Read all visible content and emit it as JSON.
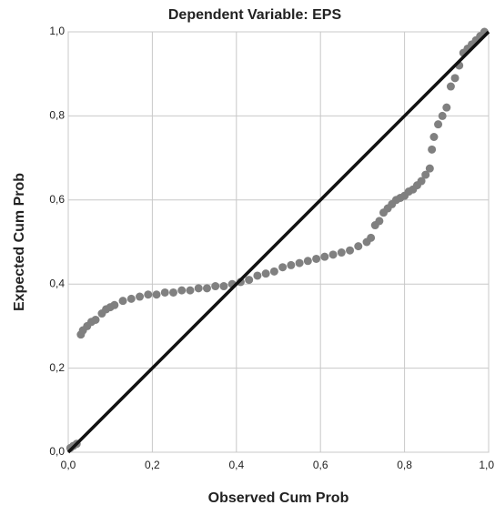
{
  "chart_data": {
    "type": "scatter",
    "title": "Dependent Variable: EPS",
    "x_label": "Observed Cum Prob",
    "y_label": "Expected Cum Prob",
    "xlim": [
      0,
      1
    ],
    "ylim": [
      0,
      1
    ],
    "xticks": [
      {
        "value": 0,
        "label": "0,0"
      },
      {
        "value": 0.2,
        "label": "0,2"
      },
      {
        "value": 0.4,
        "label": "0,4"
      },
      {
        "value": 0.6,
        "label": "0,6"
      },
      {
        "value": 0.8,
        "label": "0,8"
      },
      {
        "value": 1,
        "label": "1,0"
      }
    ],
    "yticks": [
      {
        "value": 0,
        "label": "0,0"
      },
      {
        "value": 0.2,
        "label": "0,2"
      },
      {
        "value": 0.4,
        "label": "0,4"
      },
      {
        "value": 0.6,
        "label": "0,6"
      },
      {
        "value": 0.8,
        "label": "0,8"
      },
      {
        "value": 1,
        "label": "1,0"
      }
    ],
    "grid": true,
    "series": [
      {
        "color": "#808080",
        "x": [
          0.005,
          0.012,
          0.02,
          0.03,
          0.035,
          0.045,
          0.055,
          0.065,
          0.08,
          0.09,
          0.1,
          0.11,
          0.13,
          0.15,
          0.17,
          0.19,
          0.21,
          0.23,
          0.25,
          0.27,
          0.29,
          0.31,
          0.33,
          0.35,
          0.37,
          0.39,
          0.41,
          0.43,
          0.45,
          0.47,
          0.49,
          0.51,
          0.53,
          0.55,
          0.57,
          0.59,
          0.61,
          0.63,
          0.65,
          0.67,
          0.69,
          0.71,
          0.72,
          0.73,
          0.74,
          0.75,
          0.76,
          0.77,
          0.78,
          0.79,
          0.8,
          0.81,
          0.82,
          0.83,
          0.84,
          0.85,
          0.86,
          0.865,
          0.87,
          0.88,
          0.89,
          0.9,
          0.91,
          0.92,
          0.93,
          0.94,
          0.95,
          0.96,
          0.97,
          0.98,
          0.99
        ],
        "values": [
          0.01,
          0.015,
          0.02,
          0.28,
          0.29,
          0.3,
          0.31,
          0.315,
          0.33,
          0.34,
          0.345,
          0.35,
          0.36,
          0.365,
          0.37,
          0.375,
          0.375,
          0.38,
          0.38,
          0.385,
          0.385,
          0.39,
          0.39,
          0.395,
          0.395,
          0.4,
          0.405,
          0.41,
          0.42,
          0.425,
          0.43,
          0.44,
          0.445,
          0.45,
          0.455,
          0.46,
          0.465,
          0.47,
          0.475,
          0.48,
          0.49,
          0.5,
          0.51,
          0.54,
          0.55,
          0.57,
          0.58,
          0.59,
          0.6,
          0.605,
          0.61,
          0.62,
          0.625,
          0.635,
          0.645,
          0.66,
          0.675,
          0.72,
          0.75,
          0.78,
          0.8,
          0.82,
          0.87,
          0.89,
          0.92,
          0.95,
          0.96,
          0.97,
          0.98,
          0.99,
          1.0
        ]
      }
    ]
  }
}
